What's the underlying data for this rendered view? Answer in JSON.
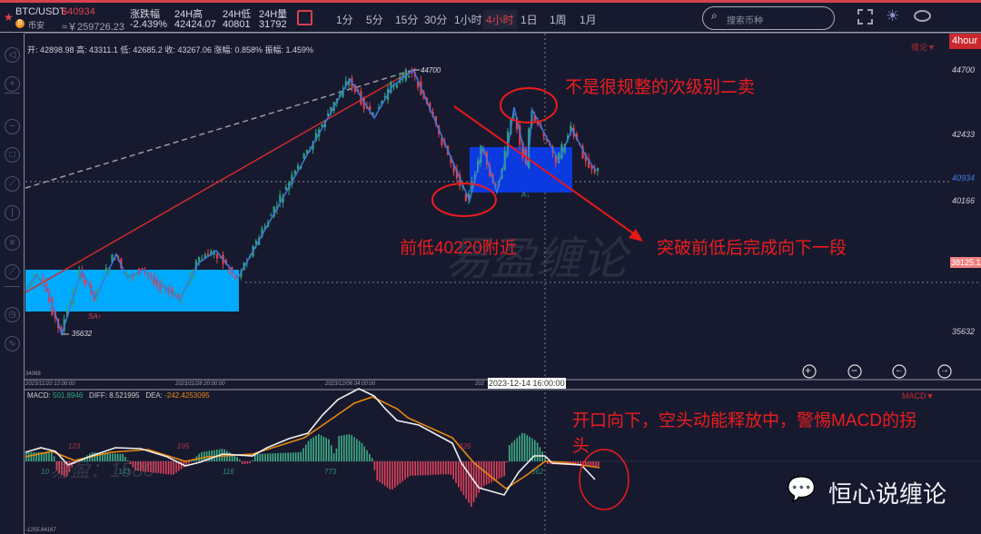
{
  "header": {
    "symbol": "BTC/USDT",
    "price": "$40934",
    "exchange": "币安",
    "cny_price": "≈￥259726.23",
    "stats": [
      {
        "label": "涨跌幅",
        "value": "-2.439%"
      },
      {
        "label": "24H高",
        "value": "42424.07"
      },
      {
        "label": "24H低",
        "value": "40801"
      },
      {
        "label": "24H量",
        "value": "31792"
      }
    ],
    "timeframes": [
      "1分",
      "5分",
      "15分",
      "30分",
      "1小时",
      "4小时",
      "1日",
      "1周",
      "1月"
    ],
    "active_timeframe": "4小时",
    "search_placeholder": "搜索币种"
  },
  "ohlc": "开: 42898.98   高: 43311.1   低: 42685.2   收: 43267.06   涨幅: 0.858%   振幅: 1.459%",
  "chart": {
    "period_badge": "4hour",
    "indicator_menu": "缠论▼",
    "price_labels": {
      "p44700": "44700",
      "p42433": "42433",
      "current": "40934",
      "p40166": "40166",
      "crosshair": "38125.14",
      "p35632": "35632",
      "bottom": "34068"
    },
    "high_marker": "44700",
    "low_marker": "35632",
    "sa_marker": "SA↑",
    "a_marker": "A↓",
    "time_labels": [
      "2023/11/20 12:00:00",
      "2023/11/28 20:00:00",
      "2023/12/06 04:00:00",
      "202"
    ],
    "crosshair_time": "2023-12-14 16:00:00",
    "watermark": "易盈缠论",
    "colors": {
      "up": "#2fa37a",
      "down": "#e0404a",
      "stroke": "#3b78e0",
      "accent": "#ee1c1c"
    }
  },
  "annotations": {
    "second_sell": "不是很规整的次级别二卖",
    "prev_low": "前低40220附近",
    "break_low": "突破前低后完成向下一段",
    "macd_note_1": "开口向下，空头动能释放中，警惕MACD的拐",
    "macd_note_2": "头"
  },
  "macd": {
    "label": "MACD: ",
    "value": "501.8946",
    "diff": "DIFF: 8.521995",
    "dea_label": "DEA: ",
    "dea": "-242.4253095",
    "menu": "MACD▼",
    "bottom": "-1255.84167",
    "watermark": "易盈：1580",
    "area_labels_red": [
      "123",
      "195",
      "326"
    ],
    "area_labels_green": [
      "10",
      "141",
      "116",
      "773",
      "362"
    ]
  },
  "brand": "恒心说缠论"
}
